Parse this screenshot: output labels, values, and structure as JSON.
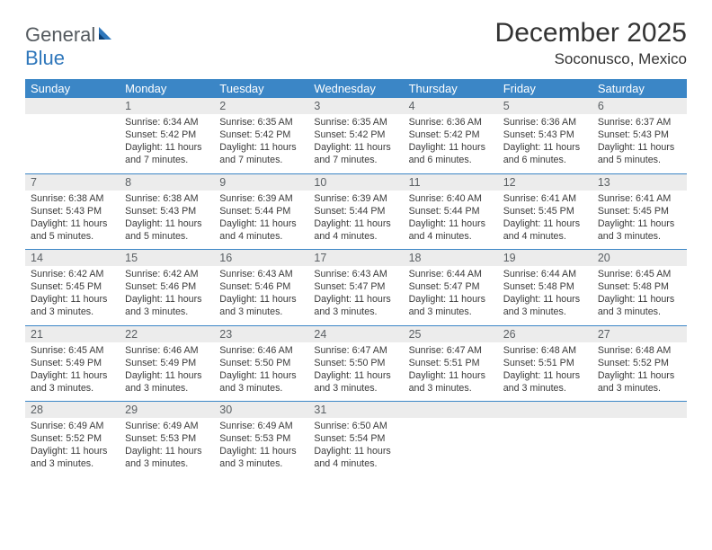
{
  "logo": {
    "general": "General",
    "blue": "Blue"
  },
  "title": "December 2025",
  "location": "Soconusco, Mexico",
  "colors": {
    "header_bg": "#3b86c6",
    "header_text": "#ffffff",
    "daynum_bg": "#ececec",
    "daynum_text": "#5a5f63",
    "rule": "#3b86c6",
    "logo_gray": "#555b60",
    "logo_blue": "#2f77bb"
  },
  "dow": [
    "Sunday",
    "Monday",
    "Tuesday",
    "Wednesday",
    "Thursday",
    "Friday",
    "Saturday"
  ],
  "weeks": [
    {
      "nums": [
        "",
        "1",
        "2",
        "3",
        "4",
        "5",
        "6"
      ],
      "info": [
        "",
        "Sunrise: 6:34 AM\nSunset: 5:42 PM\nDaylight: 11 hours and 7 minutes.",
        "Sunrise: 6:35 AM\nSunset: 5:42 PM\nDaylight: 11 hours and 7 minutes.",
        "Sunrise: 6:35 AM\nSunset: 5:42 PM\nDaylight: 11 hours and 7 minutes.",
        "Sunrise: 6:36 AM\nSunset: 5:42 PM\nDaylight: 11 hours and 6 minutes.",
        "Sunrise: 6:36 AM\nSunset: 5:43 PM\nDaylight: 11 hours and 6 minutes.",
        "Sunrise: 6:37 AM\nSunset: 5:43 PM\nDaylight: 11 hours and 5 minutes."
      ]
    },
    {
      "nums": [
        "7",
        "8",
        "9",
        "10",
        "11",
        "12",
        "13"
      ],
      "info": [
        "Sunrise: 6:38 AM\nSunset: 5:43 PM\nDaylight: 11 hours and 5 minutes.",
        "Sunrise: 6:38 AM\nSunset: 5:43 PM\nDaylight: 11 hours and 5 minutes.",
        "Sunrise: 6:39 AM\nSunset: 5:44 PM\nDaylight: 11 hours and 4 minutes.",
        "Sunrise: 6:39 AM\nSunset: 5:44 PM\nDaylight: 11 hours and 4 minutes.",
        "Sunrise: 6:40 AM\nSunset: 5:44 PM\nDaylight: 11 hours and 4 minutes.",
        "Sunrise: 6:41 AM\nSunset: 5:45 PM\nDaylight: 11 hours and 4 minutes.",
        "Sunrise: 6:41 AM\nSunset: 5:45 PM\nDaylight: 11 hours and 3 minutes."
      ]
    },
    {
      "nums": [
        "14",
        "15",
        "16",
        "17",
        "18",
        "19",
        "20"
      ],
      "info": [
        "Sunrise: 6:42 AM\nSunset: 5:45 PM\nDaylight: 11 hours and 3 minutes.",
        "Sunrise: 6:42 AM\nSunset: 5:46 PM\nDaylight: 11 hours and 3 minutes.",
        "Sunrise: 6:43 AM\nSunset: 5:46 PM\nDaylight: 11 hours and 3 minutes.",
        "Sunrise: 6:43 AM\nSunset: 5:47 PM\nDaylight: 11 hours and 3 minutes.",
        "Sunrise: 6:44 AM\nSunset: 5:47 PM\nDaylight: 11 hours and 3 minutes.",
        "Sunrise: 6:44 AM\nSunset: 5:48 PM\nDaylight: 11 hours and 3 minutes.",
        "Sunrise: 6:45 AM\nSunset: 5:48 PM\nDaylight: 11 hours and 3 minutes."
      ]
    },
    {
      "nums": [
        "21",
        "22",
        "23",
        "24",
        "25",
        "26",
        "27"
      ],
      "info": [
        "Sunrise: 6:45 AM\nSunset: 5:49 PM\nDaylight: 11 hours and 3 minutes.",
        "Sunrise: 6:46 AM\nSunset: 5:49 PM\nDaylight: 11 hours and 3 minutes.",
        "Sunrise: 6:46 AM\nSunset: 5:50 PM\nDaylight: 11 hours and 3 minutes.",
        "Sunrise: 6:47 AM\nSunset: 5:50 PM\nDaylight: 11 hours and 3 minutes.",
        "Sunrise: 6:47 AM\nSunset: 5:51 PM\nDaylight: 11 hours and 3 minutes.",
        "Sunrise: 6:48 AM\nSunset: 5:51 PM\nDaylight: 11 hours and 3 minutes.",
        "Sunrise: 6:48 AM\nSunset: 5:52 PM\nDaylight: 11 hours and 3 minutes."
      ]
    },
    {
      "nums": [
        "28",
        "29",
        "30",
        "31",
        "",
        "",
        ""
      ],
      "info": [
        "Sunrise: 6:49 AM\nSunset: 5:52 PM\nDaylight: 11 hours and 3 minutes.",
        "Sunrise: 6:49 AM\nSunset: 5:53 PM\nDaylight: 11 hours and 3 minutes.",
        "Sunrise: 6:49 AM\nSunset: 5:53 PM\nDaylight: 11 hours and 3 minutes.",
        "Sunrise: 6:50 AM\nSunset: 5:54 PM\nDaylight: 11 hours and 4 minutes.",
        "",
        "",
        ""
      ]
    }
  ]
}
